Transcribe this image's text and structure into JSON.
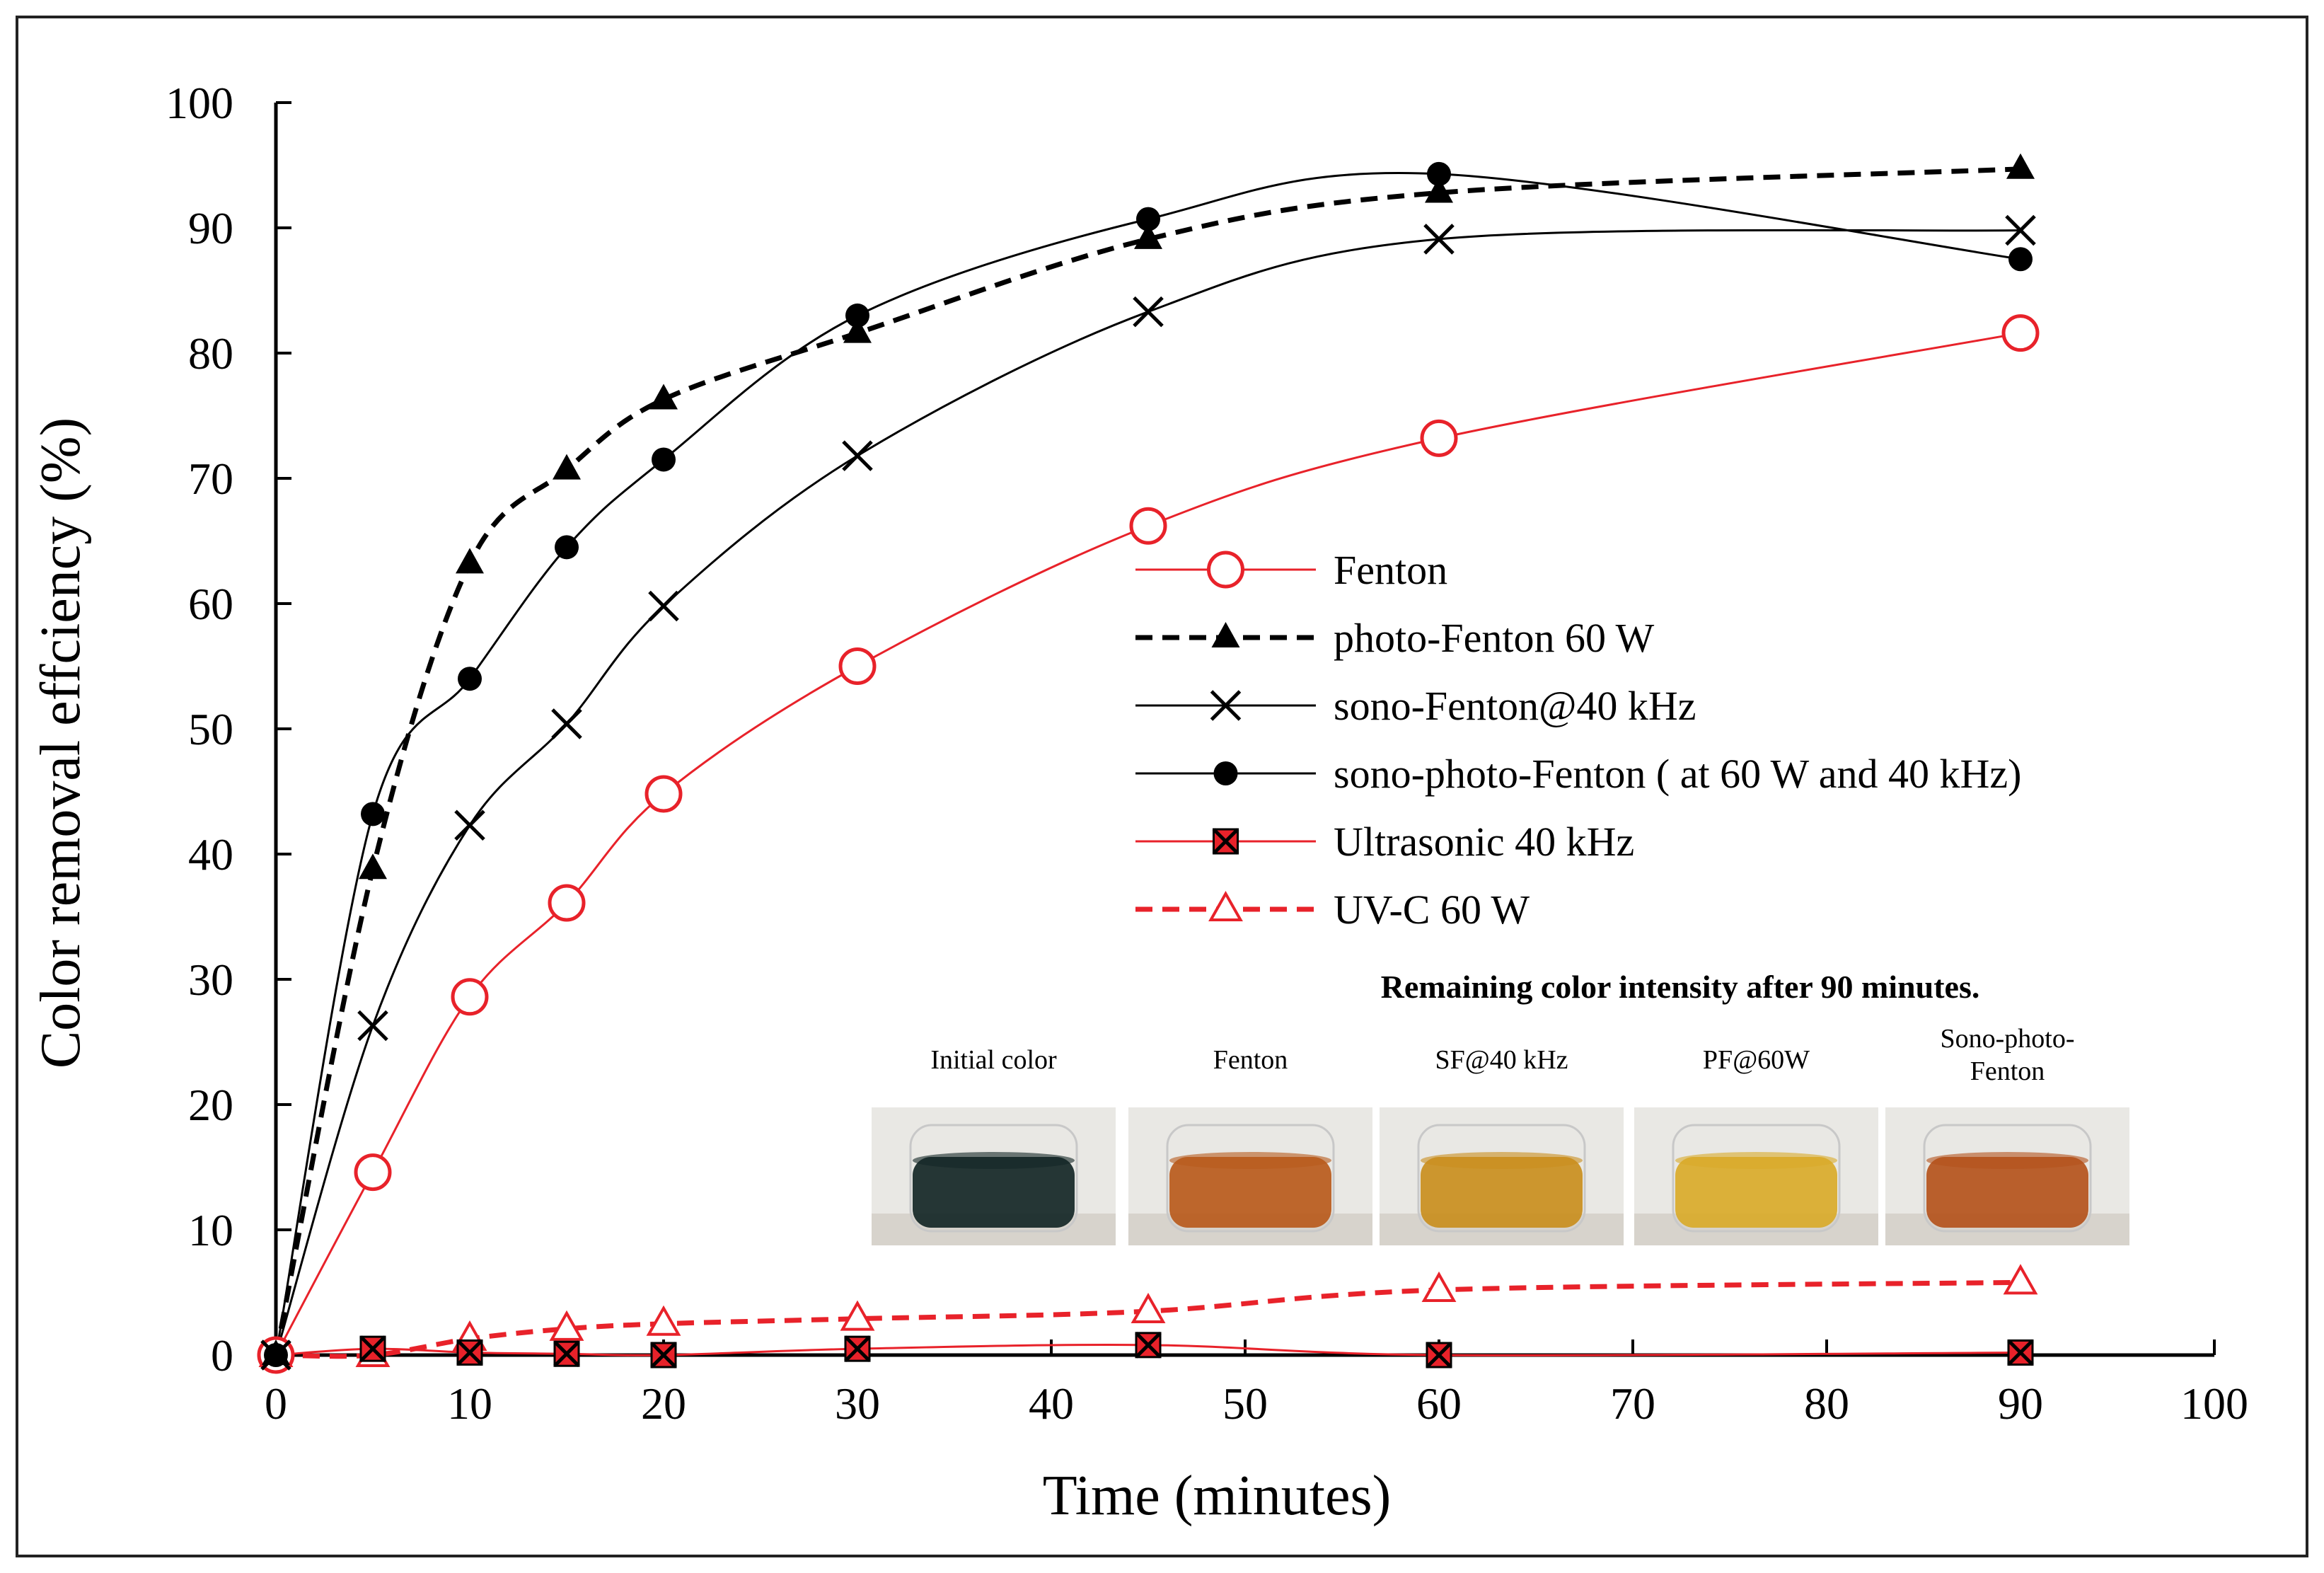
{
  "chart_data": {
    "type": "line",
    "title": "",
    "xlabel": "Time (minutes)",
    "ylabel": "Color  removal effciency (%)",
    "xlim": [
      0,
      100
    ],
    "ylim": [
      0,
      100
    ],
    "xticks": [
      0,
      10,
      20,
      30,
      40,
      50,
      60,
      70,
      80,
      90,
      100
    ],
    "yticks": [
      0,
      10,
      20,
      30,
      40,
      50,
      60,
      70,
      80,
      90,
      100
    ],
    "x": [
      0,
      5,
      10,
      15,
      20,
      30,
      45,
      60,
      90
    ],
    "legend_position": "middle-right",
    "series": [
      {
        "name": "Fenton",
        "values": [
          0,
          14.6,
          28.6,
          36.1,
          44.8,
          55.0,
          66.2,
          73.2,
          81.6
        ],
        "color": "#e8222a",
        "dash": "solid",
        "marker": "open-circle"
      },
      {
        "name": "photo-Fenton 60 W",
        "values": [
          0,
          38.8,
          63.2,
          70.7,
          76.3,
          81.6,
          89.1,
          92.8,
          94.7
        ],
        "color": "#000000",
        "dash": "dashed",
        "marker": "filled-triangle"
      },
      {
        "name": "sono-Fenton@40 kHz",
        "values": [
          0,
          26.3,
          42.3,
          50.4,
          59.8,
          71.8,
          83.3,
          89.1,
          89.8
        ],
        "color": "#000000",
        "dash": "solid",
        "marker": "x"
      },
      {
        "name": "sono-photo-Fenton ( at 60 W and 40 kHz)",
        "values": [
          0,
          43.2,
          54.0,
          64.5,
          71.5,
          83.0,
          90.7,
          94.3,
          87.5
        ],
        "color": "#000000",
        "dash": "solid",
        "marker": "filled-circle"
      },
      {
        "name": "Ultrasonic 40 kHz",
        "values": [
          0,
          0.5,
          0.2,
          0.1,
          0.0,
          0.5,
          0.8,
          0.0,
          0.2
        ],
        "color": "#e8222a",
        "dash": "solid",
        "marker": "boxed-x"
      },
      {
        "name": "UV-C 60 W",
        "values": [
          0,
          0.0,
          1.3,
          2.1,
          2.5,
          2.9,
          3.5,
          5.2,
          5.8
        ],
        "color": "#e8222a",
        "dash": "dashed",
        "marker": "open-triangle"
      }
    ],
    "inset": {
      "title": "Remaining color intensity after 90 minutes.",
      "photos": [
        {
          "label": "Initial color",
          "liquid": "#142626"
        },
        {
          "label": "Fenton",
          "liquid": "#b85a1c"
        },
        {
          "label": "SF@40 kHz",
          "liquid": "#c98e1e"
        },
        {
          "label": "PF@60W",
          "liquid": "#d9aa2a"
        },
        {
          "label": "Sono-photo-\nFenton",
          "liquid": "#b4521c"
        }
      ]
    }
  }
}
